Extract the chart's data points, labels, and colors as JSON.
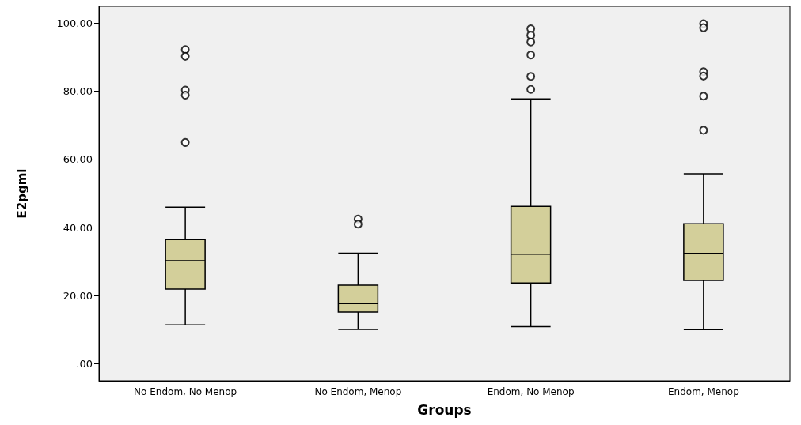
{
  "chart_data": {
    "type": "box",
    "xlabel": "Groups",
    "ylabel": "E2pgml",
    "categories": [
      "No Endom, No Menop",
      "No Endom, Menop",
      "Endom, No Menop",
      "Endom, Menop"
    ],
    "color": "#d3cf9a",
    "boxes": [
      {
        "low": 11.4,
        "q1": 21.9,
        "median": 30.3,
        "q3": 36.5,
        "high": 46.0,
        "outliers": [
          92.3,
          90.3,
          80.4,
          78.9,
          65.0
        ]
      },
      {
        "low": 10.1,
        "q1": 15.2,
        "median": 17.7,
        "q3": 23.1,
        "high": 32.5,
        "outliers": [
          42.5,
          41.0
        ]
      },
      {
        "low": 10.9,
        "q1": 23.7,
        "median": 32.2,
        "q3": 46.2,
        "high": 77.8,
        "outliers": [
          98.4,
          96.5,
          94.5,
          90.7,
          84.4,
          80.6
        ]
      },
      {
        "low": 10.0,
        "q1": 24.5,
        "median": 32.4,
        "q3": 41.1,
        "high": 55.8,
        "outliers": [
          99.9,
          98.7,
          85.8,
          84.5,
          78.6,
          68.6
        ]
      }
    ],
    "ylim": [
      -5,
      105
    ],
    "yticks": [
      {
        "value": 0,
        "label": ".00"
      },
      {
        "value": 20,
        "label": "20.00"
      },
      {
        "value": 40,
        "label": "40.00"
      },
      {
        "value": 60,
        "label": "60.00"
      },
      {
        "value": 80,
        "label": "80.00"
      },
      {
        "value": 100,
        "label": "100.00"
      }
    ],
    "grid": false,
    "marker": "circle"
  }
}
